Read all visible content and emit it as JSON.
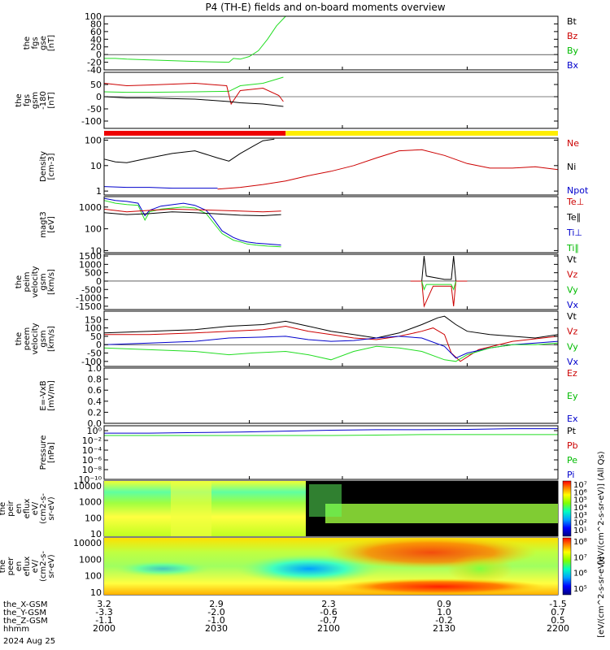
{
  "title": "P4 (TH-E) fields and on-board moments overview",
  "date_label": "2024 Aug 25",
  "chart_data": [
    {
      "type": "line",
      "id": "fgs_gse",
      "ylabel": [
        "the",
        "fgs",
        "gse",
        "[nT]"
      ],
      "ylim": [
        -40,
        100
      ],
      "yticks": [
        -40,
        -20,
        0,
        20,
        40,
        60,
        80,
        100
      ],
      "legend": [
        {
          "name": "Bt",
          "color": "#000000"
        },
        {
          "name": "Bz",
          "color": "#cc0000"
        },
        {
          "name": "By",
          "color": "#00bb00"
        },
        {
          "name": "Bx",
          "color": "#0000cc"
        }
      ],
      "series": [
        {
          "name": "By",
          "color": "#22dd22",
          "x": [
            2000,
            2005,
            2010,
            2020,
            2040,
            2055,
            2057,
            2060,
            2064,
            2068,
            2072,
            2076,
            2080
          ],
          "y": [
            -10,
            -10,
            -12,
            -14,
            -18,
            -20,
            -10,
            -12,
            -5,
            10,
            40,
            75,
            100
          ]
        }
      ]
    },
    {
      "type": "line",
      "id": "fgs_gsm",
      "ylabel": [
        "the",
        "fgs",
        "gsm",
        "-180",
        "[nT]"
      ],
      "ylim": [
        -130,
        100
      ],
      "yticks": [
        -100,
        -50,
        0,
        50
      ],
      "series": [
        {
          "name": "green",
          "color": "#22dd22",
          "x": [
            2000,
            2010,
            2020,
            2040,
            2055,
            2060,
            2070,
            2079
          ],
          "y": [
            20,
            18,
            18,
            20,
            22,
            45,
            55,
            80
          ]
        },
        {
          "name": "red",
          "color": "#cc0000",
          "x": [
            2000,
            2005,
            2010,
            2020,
            2040,
            2054,
            2056,
            2060,
            2070,
            2077,
            2079
          ],
          "y": [
            55,
            50,
            45,
            48,
            55,
            45,
            -30,
            25,
            35,
            5,
            -20
          ]
        },
        {
          "name": "black",
          "color": "#000000",
          "x": [
            2000,
            2010,
            2020,
            2030,
            2040,
            2055,
            2060,
            2070,
            2079
          ],
          "y": [
            0,
            -5,
            -5,
            -8,
            -10,
            -20,
            -25,
            -30,
            -40
          ]
        }
      ]
    },
    {
      "type": "line",
      "id": "density",
      "scale": "log",
      "ylabel": [
        "Density",
        "[cm-3]"
      ],
      "ylim": [
        0.7,
        120
      ],
      "yticks": [
        1,
        10,
        100
      ],
      "ytick_labels": [
        "1",
        "10",
        "100"
      ],
      "legend": [
        {
          "name": "Ne",
          "color": "#cc0000"
        },
        {
          "name": "Ni",
          "color": "#000000"
        },
        {
          "name": "Npot",
          "color": "#0000cc"
        }
      ],
      "series": [
        {
          "name": "Ni",
          "color": "#000000",
          "x": [
            2000,
            2005,
            2010,
            2020,
            2030,
            2040,
            2050,
            2055,
            2060,
            2066,
            2070,
            2075
          ],
          "y": [
            18,
            14,
            13,
            20,
            30,
            38,
            20,
            15,
            30,
            60,
            95,
            110
          ]
        },
        {
          "name": "Ne",
          "color": "#cc0000",
          "x": [
            2050,
            2060,
            2070,
            2080,
            2090,
            2100,
            2110,
            2120,
            2130,
            2140,
            2150,
            2160,
            2170,
            2180,
            2190,
            2200
          ],
          "y": [
            1.2,
            1.4,
            1.8,
            2.5,
            4,
            6,
            10,
            20,
            38,
            42,
            25,
            12,
            8,
            8,
            9,
            7
          ]
        },
        {
          "name": "Npot",
          "color": "#0000cc",
          "x": [
            2000,
            2010,
            2020,
            2030,
            2040,
            2050
          ],
          "y": [
            1.5,
            1.4,
            1.4,
            1.3,
            1.3,
            1.3
          ]
        }
      ]
    },
    {
      "type": "line",
      "id": "temperature",
      "scale": "log",
      "ylabel": [
        "magt3",
        "[eV]"
      ],
      "ylim": [
        8,
        3000
      ],
      "yticks": [
        10,
        100,
        1000
      ],
      "ytick_labels": [
        "10",
        "100",
        "1000"
      ],
      "legend": [
        {
          "name": "Te⊥",
          "color": "#cc0000"
        },
        {
          "name": "Te∥",
          "color": "#000000"
        },
        {
          "name": "Ti⊥",
          "color": "#0000cc"
        },
        {
          "name": "Ti∥",
          "color": "#00bb00"
        }
      ],
      "series": [
        {
          "name": "Ti∥",
          "color": "#22dd22",
          "x": [
            2000,
            2005,
            2010,
            2015,
            2018,
            2020,
            2025,
            2035,
            2040,
            2045,
            2048,
            2052,
            2057,
            2060,
            2063,
            2067,
            2072,
            2078
          ],
          "y": [
            2000,
            1500,
            1300,
            1200,
            250,
            600,
            800,
            1000,
            900,
            500,
            200,
            60,
            30,
            25,
            20,
            18,
            16,
            15
          ]
        },
        {
          "name": "Ti⊥",
          "color": "#0000cc",
          "x": [
            2000,
            2005,
            2010,
            2015,
            2018,
            2020,
            2025,
            2035,
            2040,
            2045,
            2048,
            2052,
            2057,
            2060,
            2063,
            2067,
            2072,
            2078
          ],
          "y": [
            2500,
            2000,
            1800,
            1500,
            400,
            700,
            1100,
            1500,
            1200,
            700,
            300,
            80,
            40,
            30,
            25,
            22,
            20,
            18
          ]
        },
        {
          "name": "Te⊥",
          "color": "#cc0000",
          "x": [
            2000,
            2010,
            2020,
            2030,
            2040,
            2050,
            2060,
            2070,
            2078
          ],
          "y": [
            800,
            600,
            700,
            800,
            750,
            700,
            650,
            600,
            650
          ]
        },
        {
          "name": "Te∥",
          "color": "#000000",
          "x": [
            2000,
            2010,
            2020,
            2030,
            2040,
            2050,
            2060,
            2070,
            2078
          ],
          "y": [
            550,
            450,
            500,
            600,
            550,
            480,
            420,
            400,
            450
          ]
        }
      ]
    },
    {
      "type": "line",
      "id": "peim_velocity",
      "ylabel": [
        "the",
        "peim",
        "velocity",
        "gsm",
        "[km/s]"
      ],
      "ylim": [
        -1700,
        1600
      ],
      "yticks": [
        -1500,
        -1000,
        -500,
        0,
        500,
        1000,
        1500
      ],
      "legend": [
        {
          "name": "Vt",
          "color": "#000000"
        },
        {
          "name": "Vz",
          "color": "#cc0000"
        },
        {
          "name": "Vy",
          "color": "#00bb00"
        },
        {
          "name": "Vx",
          "color": "#0000cc"
        }
      ],
      "series": [
        {
          "name": "Vt",
          "color": "#000000",
          "x": [
            2140,
            2141,
            2142,
            2150,
            2153,
            2154,
            2155
          ],
          "y": [
            0,
            1500,
            300,
            100,
            100,
            1500,
            0
          ]
        },
        {
          "name": "Vz",
          "color": "#cc0000",
          "x": [
            2135,
            2140,
            2141,
            2145,
            2150,
            2153,
            2154,
            2155,
            2160
          ],
          "y": [
            0,
            0,
            -1500,
            -300,
            -300,
            -300,
            -1500,
            0,
            0
          ]
        },
        {
          "name": "Vy",
          "color": "#22dd22",
          "x": [
            2140,
            2141,
            2142,
            2153,
            2154,
            2155
          ],
          "y": [
            0,
            -500,
            -200,
            -200,
            -500,
            0
          ]
        }
      ]
    },
    {
      "type": "line",
      "id": "peem_velocity",
      "ylabel": [
        "the",
        "peem",
        "velocity",
        "gsm",
        "[km/s]"
      ],
      "ylim": [
        -130,
        200
      ],
      "yticks": [
        -100,
        -50,
        0,
        50,
        100,
        150
      ],
      "legend": [
        {
          "name": "Vt",
          "color": "#000000"
        },
        {
          "name": "Vz",
          "color": "#cc0000"
        },
        {
          "name": "Vy",
          "color": "#00bb00"
        },
        {
          "name": "Vx",
          "color": "#0000cc"
        }
      ],
      "series": [
        {
          "name": "Vt",
          "color": "#000000",
          "x": [
            2000,
            2020,
            2040,
            2055,
            2070,
            2080,
            2090,
            2100,
            2110,
            2120,
            2130,
            2140,
            2147,
            2150,
            2155,
            2160,
            2170,
            2180,
            2190,
            2200
          ],
          "y": [
            70,
            80,
            90,
            110,
            120,
            140,
            110,
            80,
            60,
            40,
            70,
            120,
            160,
            170,
            120,
            80,
            60,
            50,
            40,
            60
          ]
        },
        {
          "name": "Vz",
          "color": "#cc0000",
          "x": [
            2000,
            2020,
            2040,
            2055,
            2070,
            2080,
            2090,
            2100,
            2110,
            2120,
            2130,
            2140,
            2145,
            2150,
            2153,
            2157,
            2165,
            2180,
            2200
          ],
          "y": [
            60,
            60,
            70,
            80,
            90,
            110,
            80,
            60,
            40,
            30,
            50,
            80,
            100,
            60,
            -50,
            -100,
            -30,
            20,
            50
          ]
        },
        {
          "name": "Vx",
          "color": "#0000cc",
          "x": [
            2000,
            2020,
            2040,
            2055,
            2070,
            2080,
            2090,
            2100,
            2110,
            2120,
            2130,
            2140,
            2150,
            2155,
            2160,
            2170,
            2180,
            2190,
            2200
          ],
          "y": [
            0,
            10,
            20,
            40,
            45,
            50,
            30,
            20,
            25,
            40,
            50,
            40,
            -10,
            -80,
            -50,
            -20,
            0,
            10,
            20
          ]
        },
        {
          "name": "Vy",
          "color": "#22dd22",
          "x": [
            2000,
            2020,
            2040,
            2055,
            2065,
            2080,
            2090,
            2100,
            2110,
            2120,
            2130,
            2140,
            2150,
            2155,
            2160,
            2170,
            2180,
            2190,
            2200
          ],
          "y": [
            -20,
            -30,
            -40,
            -60,
            -50,
            -40,
            -60,
            -90,
            -40,
            -10,
            -20,
            -40,
            -90,
            -100,
            -60,
            -20,
            0,
            0,
            10
          ]
        }
      ]
    },
    {
      "type": "line",
      "id": "efield",
      "ylabel": [
        "E=-VxB",
        "[mV/m]"
      ],
      "ylim": [
        0,
        1
      ],
      "yticks": [
        0,
        0.2,
        0.4,
        0.6,
        0.8,
        1.0
      ],
      "ytick_labels": [
        "0.0",
        "0.2",
        "0.4",
        "0.6",
        "0.8",
        "1.0"
      ],
      "legend": [
        {
          "name": "Ez",
          "color": "#cc0000"
        },
        {
          "name": "Ey",
          "color": "#00bb00"
        },
        {
          "name": "Ex",
          "color": "#0000cc"
        }
      ],
      "series": []
    },
    {
      "type": "line",
      "id": "pressure",
      "scale": "log",
      "ylabel": [
        "Pressure",
        "[nPa]"
      ],
      "ylim": [
        1e-10,
        10
      ],
      "yticks": [
        1e-10,
        1e-08,
        1e-06,
        0.0001,
        0.01,
        1
      ],
      "ytick_labels": [
        "10⁻¹⁰",
        "10⁻⁸",
        "10⁻⁶",
        "10⁻⁴",
        "10⁻²",
        "10⁰"
      ],
      "legend": [
        {
          "name": "Pt",
          "color": "#000000"
        },
        {
          "name": "Pb",
          "color": "#cc0000"
        },
        {
          "name": "Pe",
          "color": "#00bb00"
        },
        {
          "name": "Pi",
          "color": "#0000cc"
        }
      ],
      "series": [
        {
          "name": "Pt",
          "color": "#0000cc",
          "x": [
            2000,
            2020,
            2040,
            2060,
            2080,
            2100,
            2120,
            2140,
            2160,
            2180,
            2200
          ],
          "y": [
            0.3,
            0.3,
            0.4,
            0.5,
            0.8,
            1.2,
            1.5,
            1.5,
            1.8,
            2.5,
            2.5
          ]
        },
        {
          "name": "Pe",
          "color": "#22dd22",
          "x": [
            2000,
            2020,
            2040,
            2060,
            2080,
            2100,
            2120,
            2140,
            2160,
            2180,
            2200
          ],
          "y": [
            0.1,
            0.1,
            0.1,
            0.1,
            0.1,
            0.1,
            0.12,
            0.15,
            0.15,
            0.15,
            0.15
          ]
        }
      ]
    },
    {
      "type": "heatmap",
      "id": "peir_eflux",
      "scale": "log",
      "ylabel": [
        "the",
        "peir",
        "en",
        "eflux",
        "eV/",
        "(cm2-s-",
        "sr-eV)"
      ],
      "ylim": [
        7,
        20000
      ],
      "yticks": [
        10,
        100,
        1000,
        10000
      ],
      "ytick_labels": [
        "10",
        "100",
        "1000",
        "10000"
      ],
      "colorbar": {
        "ticks": [
          "10⁷",
          "10⁶",
          "10⁵",
          "10⁴",
          "10³",
          "10²",
          "10¹"
        ],
        "label": "[eV/(cm^2-s-sr-eV)] (All Qs)"
      }
    },
    {
      "type": "heatmap",
      "id": "peer_eflux",
      "scale": "log",
      "ylabel": [
        "the",
        "peer",
        "en",
        "eflux",
        "eV/",
        "(cm2-s-",
        "sr-eV)"
      ],
      "ylim": [
        7,
        20000
      ],
      "yticks": [
        10,
        100,
        1000,
        10000
      ],
      "ytick_labels": [
        "10",
        "100",
        "1000",
        "10000"
      ],
      "colorbar": {
        "ticks": [
          "10⁸",
          "10⁷",
          "10⁶",
          "10⁵"
        ],
        "label": "[eV/(cm^2-s-sr-eV)]"
      }
    }
  ],
  "time_axis": {
    "xlim": [
      2000,
      2200
    ],
    "rows": [
      {
        "label": "the_X-GSM",
        "values": [
          "3.2",
          "2.9",
          "2.3",
          "0.9",
          "-1.5"
        ]
      },
      {
        "label": "the_Y-GSM",
        "values": [
          "-3.3",
          "-2.0",
          "-0.6",
          "1.0",
          "0.7"
        ]
      },
      {
        "label": "the_Z-GSM",
        "values": [
          "-1.1",
          "-1.0",
          "-0.7",
          "-0.2",
          "0.5"
        ]
      },
      {
        "label": "hhmm",
        "values": [
          "2000",
          "2030",
          "2100",
          "2130",
          "2200"
        ]
      }
    ]
  },
  "mode_bar": {
    "segments": [
      {
        "from": 2000,
        "to": 2080,
        "color": "#ee0000"
      },
      {
        "from": 2080,
        "to": 2200,
        "color": "#ffee00"
      }
    ]
  }
}
